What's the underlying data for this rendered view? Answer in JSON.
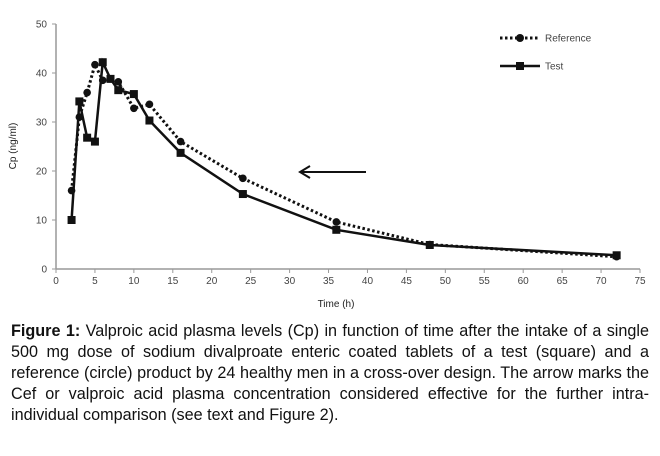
{
  "chart_data": {
    "type": "line",
    "xlabel": "Time (h)",
    "ylabel": "Cp (ng/ml)",
    "xlim": [
      0,
      75
    ],
    "ylim": [
      0,
      50
    ],
    "xticks": [
      0,
      5,
      10,
      15,
      20,
      25,
      30,
      35,
      40,
      45,
      50,
      55,
      60,
      65,
      70,
      75
    ],
    "yticks": [
      0,
      10,
      20,
      30,
      40,
      50
    ],
    "grid": false,
    "legend_position": "top-right",
    "series": [
      {
        "name": "Reference",
        "marker": "circle",
        "line": "dotted",
        "x": [
          2,
          3,
          4,
          5,
          6,
          7,
          8,
          10,
          12,
          16,
          24,
          36,
          48,
          72
        ],
        "y": [
          16,
          31,
          36,
          41.7,
          38.5,
          38.8,
          38.2,
          32.8,
          33.6,
          26,
          18.5,
          9.6,
          5,
          2.5
        ]
      },
      {
        "name": "Test",
        "marker": "square",
        "line": "solid",
        "x": [
          2,
          3,
          4,
          5,
          6,
          7,
          8,
          10,
          12,
          16,
          24,
          36,
          48,
          72
        ],
        "y": [
          10,
          34.2,
          26.8,
          26,
          42.2,
          38.8,
          36.5,
          35.7,
          30.3,
          23.7,
          15.3,
          8,
          4.9,
          2.8
        ]
      }
    ],
    "annotation": "arrow pointing left at Cef level"
  },
  "caption": {
    "label": "Figure 1:",
    "text": " Valproic acid plasma levels (Cp) in function of time after the intake of a single 500 mg dose of sodium divalproate enteric coated tablets of a test (square) and a reference (circle) product by 24 healthy men in a cross-over design. The arrow marks the Cef or valproic acid plasma concentration considered effective for the further intra- individual comparison (see text and Figure 2)."
  }
}
